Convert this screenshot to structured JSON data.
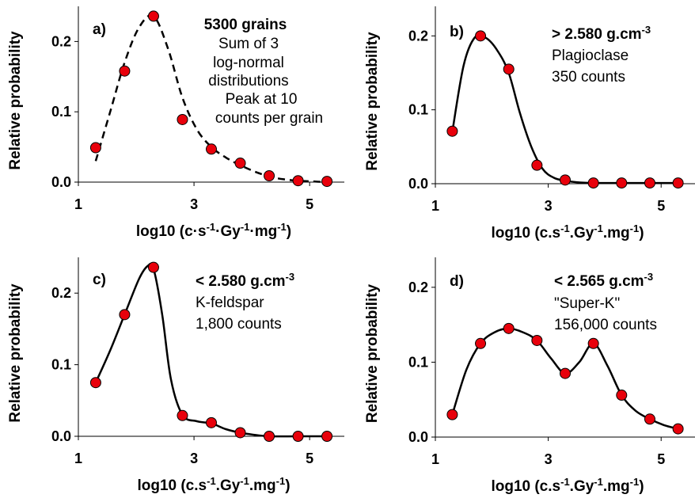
{
  "chart_data": [
    {
      "type": "scatter",
      "panel_label": "a)",
      "xlabel": "log10 (c·s⁻¹·Gy⁻¹·mg⁻¹)",
      "ylabel": "Relative probability",
      "xlim": [
        1,
        5.6
      ],
      "ylim": [
        0,
        0.25
      ],
      "xticks": [
        "1",
        "3",
        "5"
      ],
      "yticks": [
        "0.0",
        "0.1",
        "0.2"
      ],
      "annotation": [
        "5300 grains",
        "Sum of 3",
        "log-normal",
        "distributions",
        "Peak at 10",
        "counts per grain"
      ],
      "fit_style": "dashed",
      "points": {
        "x": [
          1.3,
          1.8,
          2.3,
          2.8,
          3.3,
          3.8,
          4.3,
          4.8,
          5.3
        ],
        "y": [
          0.049,
          0.158,
          0.236,
          0.089,
          0.047,
          0.027,
          0.009,
          0.002,
          0.001
        ]
      },
      "fit": {
        "x": [
          1.3,
          1.55,
          1.8,
          2.05,
          2.3,
          2.55,
          2.8,
          3.05,
          3.3,
          3.55,
          3.8,
          4.05,
          4.3,
          4.55,
          4.8,
          5.05,
          5.3
        ],
        "y": [
          0.03,
          0.1,
          0.17,
          0.22,
          0.236,
          0.19,
          0.12,
          0.075,
          0.05,
          0.035,
          0.024,
          0.015,
          0.008,
          0.004,
          0.002,
          0.001,
          0.0
        ]
      }
    },
    {
      "type": "scatter",
      "panel_label": "b)",
      "xlabel": "log10 (c.s⁻¹.Gy⁻¹.mg⁻¹)",
      "ylabel": "Relative probability",
      "xlim": [
        1,
        5.6
      ],
      "ylim": [
        0,
        0.24
      ],
      "xticks": [
        "1",
        "3",
        "5"
      ],
      "yticks": [
        "0.0",
        "0.1",
        "0.2"
      ],
      "annotation": [
        "> 2.580 g.cm⁻³",
        "Plagioclase",
        "350 counts"
      ],
      "fit_style": "solid",
      "points": {
        "x": [
          1.3,
          1.8,
          2.3,
          2.8,
          3.3,
          3.8,
          4.3,
          4.8,
          5.3
        ],
        "y": [
          0.071,
          0.2,
          0.155,
          0.025,
          0.005,
          0.001,
          0.001,
          0.001,
          0.001
        ]
      },
      "fit": {
        "x": [
          1.3,
          1.5,
          1.7,
          1.9,
          2.1,
          2.3,
          2.5,
          2.7,
          2.9,
          3.1,
          3.3,
          3.5,
          3.8,
          4.3,
          4.8,
          5.3
        ],
        "y": [
          0.07,
          0.16,
          0.198,
          0.197,
          0.18,
          0.15,
          0.095,
          0.05,
          0.02,
          0.008,
          0.004,
          0.002,
          0.001,
          0.001,
          0.001,
          0.001
        ]
      }
    },
    {
      "type": "scatter",
      "panel_label": "c)",
      "xlabel": "log10 (c.s⁻¹.Gy⁻¹.mg⁻¹)",
      "ylabel": "Relative probability",
      "xlim": [
        1,
        5.6
      ],
      "ylim": [
        0,
        0.25
      ],
      "xticks": [
        "1",
        "3",
        "5"
      ],
      "yticks": [
        "0.0",
        "0.1",
        "0.2"
      ],
      "annotation": [
        "< 2.580 g.cm⁻³",
        "K-feldspar",
        "1,800 counts"
      ],
      "fit_style": "solid",
      "points": {
        "x": [
          1.3,
          1.8,
          2.3,
          2.8,
          3.3,
          3.8,
          4.3,
          4.8,
          5.3
        ],
        "y": [
          0.075,
          0.17,
          0.236,
          0.029,
          0.019,
          0.005,
          0.0,
          0.0,
          0.0
        ]
      },
      "fit": {
        "x": [
          1.3,
          1.55,
          1.8,
          2.05,
          2.2,
          2.3,
          2.45,
          2.6,
          2.8,
          3.05,
          3.3,
          3.55,
          3.8,
          4.05,
          4.3,
          4.8,
          5.3
        ],
        "y": [
          0.075,
          0.12,
          0.17,
          0.22,
          0.238,
          0.234,
          0.17,
          0.08,
          0.03,
          0.021,
          0.018,
          0.01,
          0.005,
          0.002,
          0.0,
          0.0,
          0.0
        ]
      }
    },
    {
      "type": "scatter",
      "panel_label": "d)",
      "xlabel": "log10 (c.s⁻¹.Gy⁻¹.mg⁻¹)",
      "ylabel": "Relative probability",
      "xlim": [
        1,
        5.6
      ],
      "ylim": [
        0,
        0.24
      ],
      "xticks": [
        "1",
        "3",
        "5"
      ],
      "yticks": [
        "0.0",
        "0.1",
        "0.2"
      ],
      "annotation": [
        "< 2.565 g.cm⁻³",
        "\"Super-K\"",
        "156,000 counts"
      ],
      "fit_style": "solid",
      "points": {
        "x": [
          1.3,
          1.8,
          2.3,
          2.8,
          3.3,
          3.8,
          4.3,
          4.8,
          5.3
        ],
        "y": [
          0.03,
          0.125,
          0.145,
          0.129,
          0.085,
          0.125,
          0.056,
          0.024,
          0.011
        ]
      },
      "fit": {
        "x": [
          1.3,
          1.55,
          1.8,
          2.05,
          2.3,
          2.55,
          2.8,
          3.05,
          3.3,
          3.55,
          3.8,
          4.05,
          4.3,
          4.55,
          4.8,
          5.05,
          5.3
        ],
        "y": [
          0.03,
          0.09,
          0.125,
          0.14,
          0.145,
          0.14,
          0.129,
          0.105,
          0.085,
          0.1,
          0.125,
          0.095,
          0.056,
          0.035,
          0.024,
          0.016,
          0.011
        ]
      }
    }
  ]
}
